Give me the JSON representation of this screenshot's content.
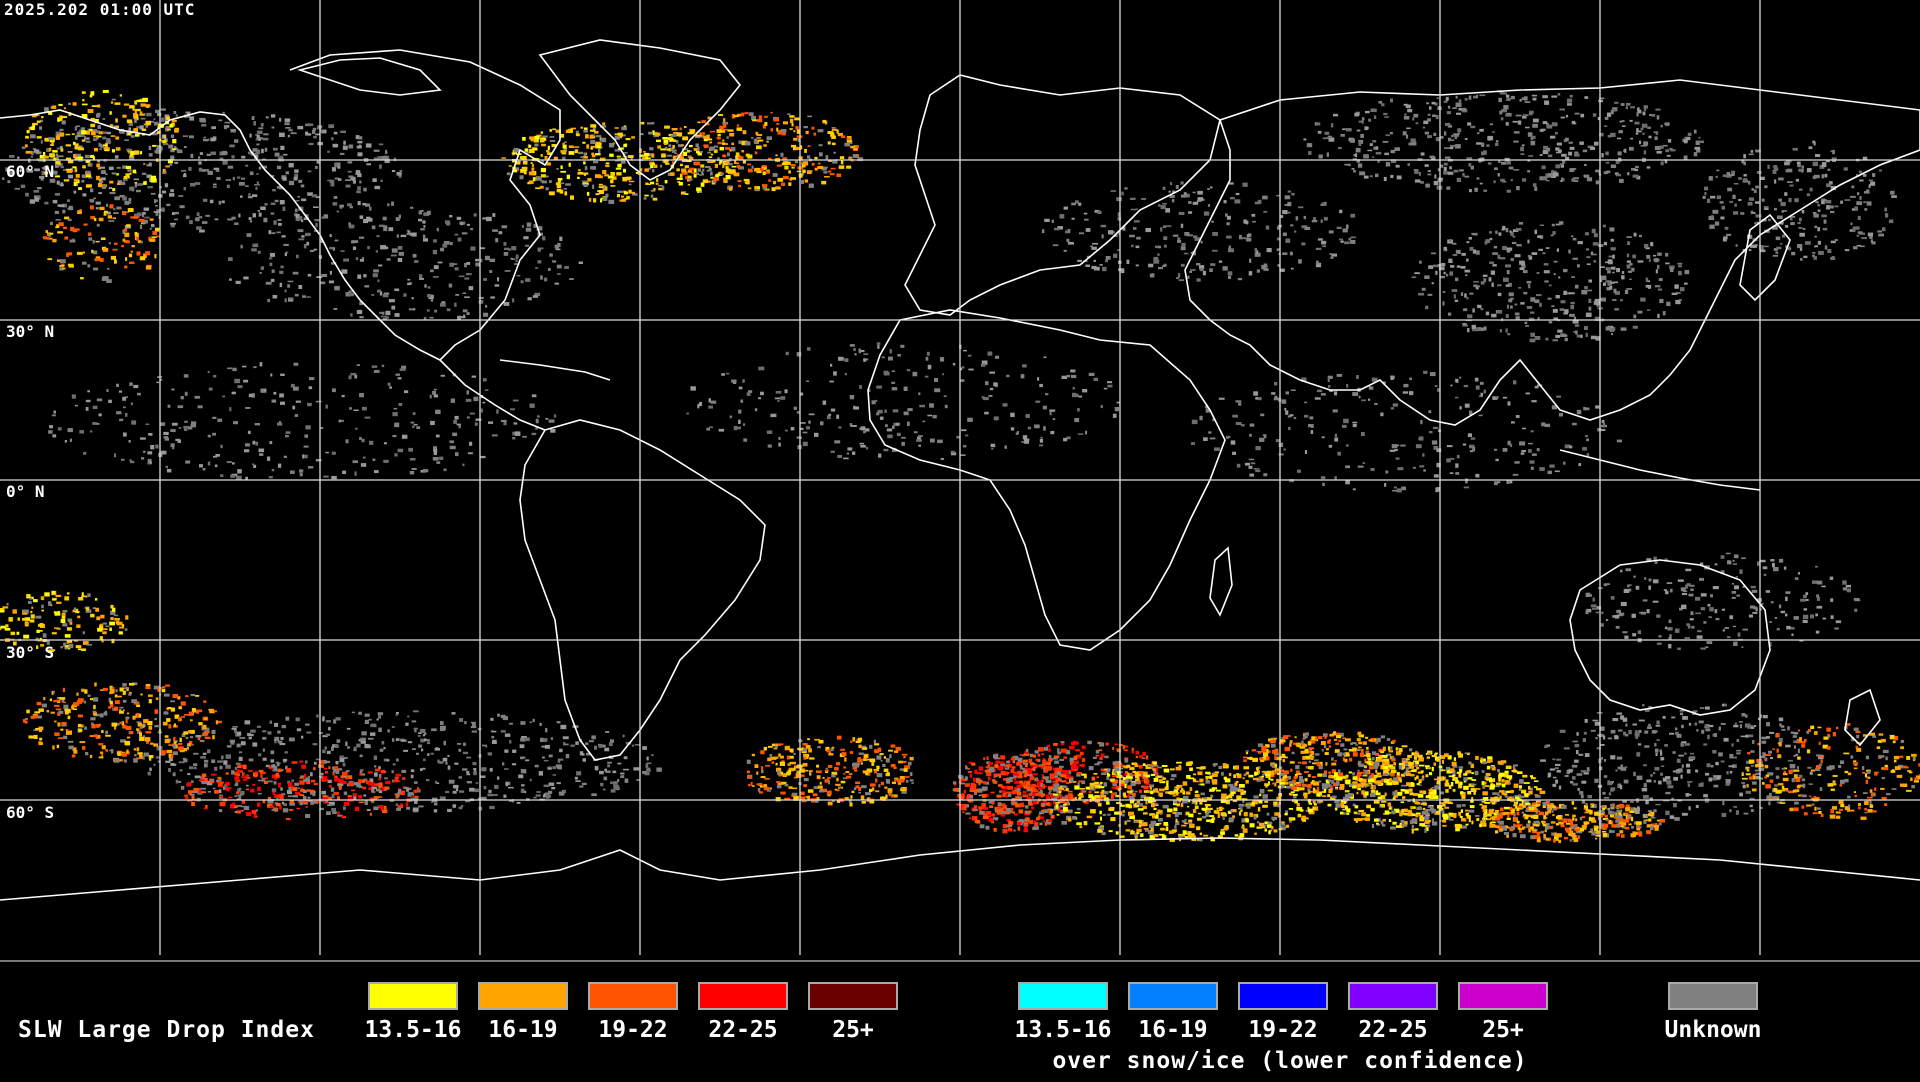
{
  "timestamp": "2025.202 01:00 UTC",
  "latitude_labels": [
    "60° N",
    "30° N",
    "0° N",
    "30° S",
    "60° S"
  ],
  "legend": {
    "title": "SLW Large Drop Index",
    "main_bins": [
      {
        "label": "13.5-16",
        "color": "#ffff00"
      },
      {
        "label": "16-19",
        "color": "#ffa500"
      },
      {
        "label": "19-22",
        "color": "#ff5500"
      },
      {
        "label": "22-25",
        "color": "#ff0000"
      },
      {
        "label": "25+",
        "color": "#6b0000"
      }
    ],
    "ice_bins": [
      {
        "label": "13.5-16",
        "color": "#00ffff"
      },
      {
        "label": "16-19",
        "color": "#0080ff"
      },
      {
        "label": "19-22",
        "color": "#0000ff"
      },
      {
        "label": "22-25",
        "color": "#7f00ff"
      },
      {
        "label": "25+",
        "color": "#cc00cc"
      }
    ],
    "ice_caption": "over snow/ice (lower confidence)",
    "unknown": {
      "label": "Unknown",
      "color": "#808080"
    }
  }
}
